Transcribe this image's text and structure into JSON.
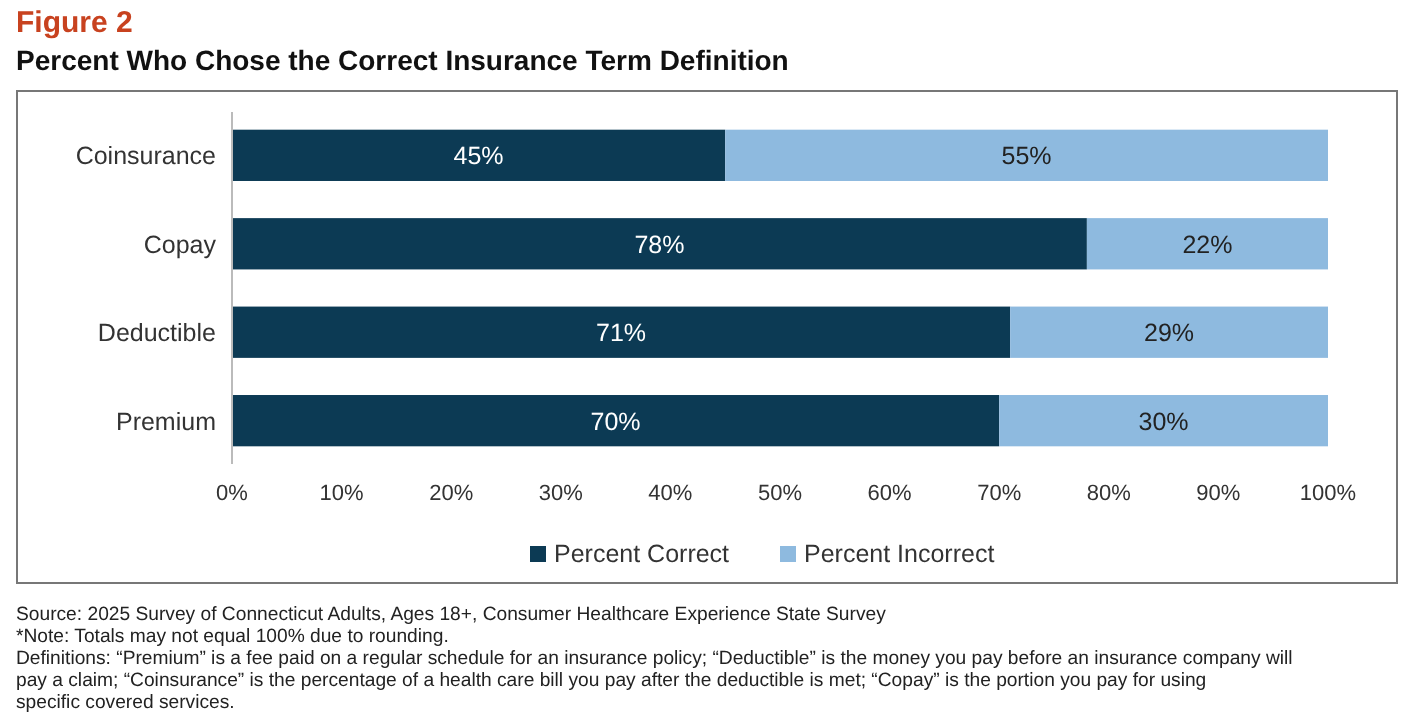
{
  "chart_data": {
    "type": "bar",
    "title": "Figure 2",
    "subtitle": "Percent Who Chose the Correct Insurance Term Definition",
    "orientation": "horizontal",
    "stacked": true,
    "categories": [
      "Coinsurance",
      "Copay",
      "Deductible",
      "Premium"
    ],
    "series": [
      {
        "name": "Percent Correct",
        "color": "#0c3a54",
        "values": [
          45,
          78,
          71,
          70
        ],
        "value_labels": [
          "45%",
          "78%",
          "71%",
          "70%"
        ]
      },
      {
        "name": "Percent Incorrect",
        "color": "#8ebadf",
        "values": [
          55,
          22,
          29,
          30
        ],
        "value_labels": [
          "55%",
          "22%",
          "29%",
          "30%"
        ]
      }
    ],
    "xlim": [
      0,
      100
    ],
    "xticks": [
      {
        "value": 0,
        "label": "0%"
      },
      {
        "value": 10,
        "label": "10%"
      },
      {
        "value": 20,
        "label": "20%"
      },
      {
        "value": 30,
        "label": "30%"
      },
      {
        "value": 40,
        "label": "40%"
      },
      {
        "value": 50,
        "label": "50%"
      },
      {
        "value": 60,
        "label": "60%"
      },
      {
        "value": 70,
        "label": "70%"
      },
      {
        "value": 80,
        "label": "80%"
      },
      {
        "value": 90,
        "label": "90%"
      },
      {
        "value": 100,
        "label": "100%"
      }
    ],
    "grid": false,
    "legend": "bottom",
    "annotations": [
      "Source: 2025 Survey of Connecticut Adults, Ages 18+, Consumer Healthcare Experience State Survey",
      "*Note: Totals may not equal 100% due to rounding.",
      "Definitions: “Premium” is a fee paid on a regular schedule for an insurance policy; “Deductible” is the money you pay before an insurance company will pay a claim; “Coinsurance” is the percentage of a health care bill you pay after the deductible is met; “Copay” is the portion you pay for using specific covered services."
    ]
  }
}
